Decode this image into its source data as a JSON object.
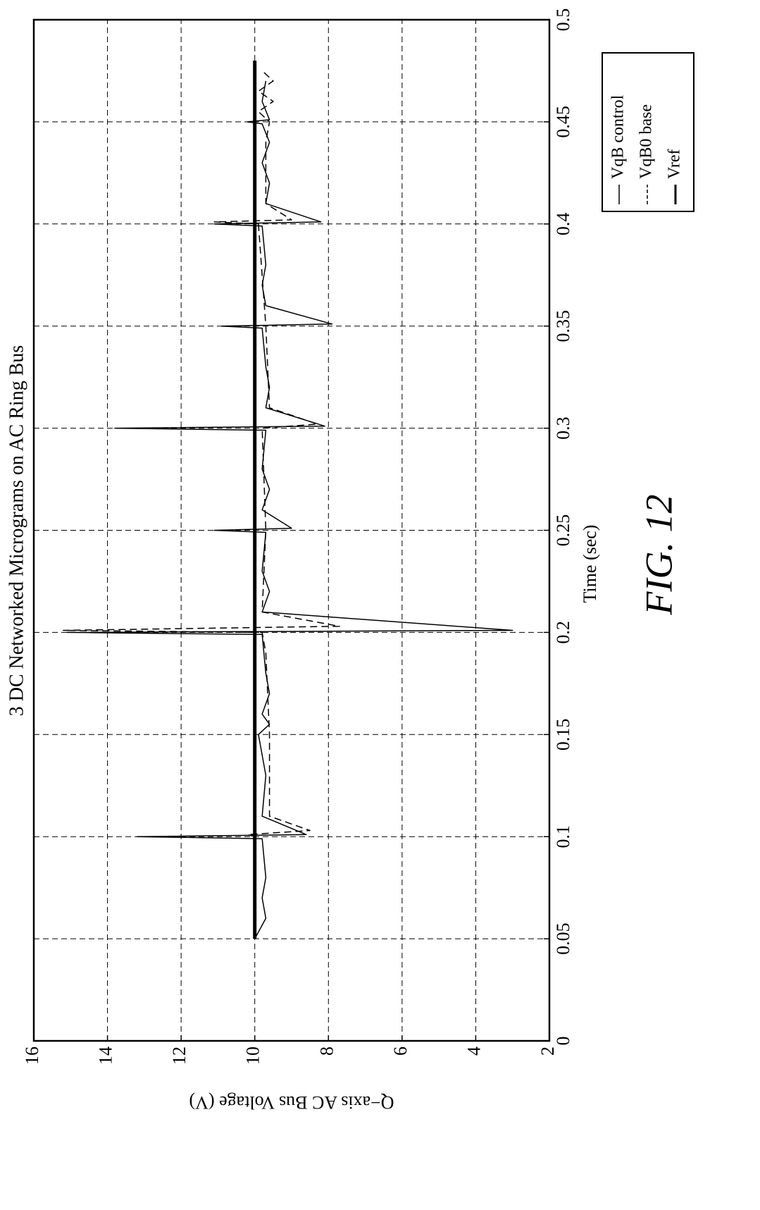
{
  "chart_data": {
    "type": "line",
    "title": "3 DC Networked Micrograms on AC Ring Bus",
    "xlabel": "Time (sec)",
    "ylabel": "Q−axis AC Bus Voltage (V)",
    "figure_label": "FIG. 12",
    "xlim": [
      0,
      0.5
    ],
    "xticks": [
      0,
      0.05,
      0.1,
      0.15,
      0.2,
      0.25,
      0.3,
      0.35,
      0.4,
      0.45,
      0.5
    ],
    "ylim": [
      2,
      16
    ],
    "yticks": [
      2,
      4,
      6,
      8,
      10,
      12,
      14,
      16
    ],
    "grid": true,
    "legend": "outside-right",
    "series": [
      {
        "name": "VqB control",
        "color": "#000000",
        "style": "solid",
        "width": 1.5,
        "x": [
          0.05,
          0.06,
          0.07,
          0.08,
          0.099,
          0.1,
          0.101,
          0.11,
          0.13,
          0.15,
          0.155,
          0.16,
          0.17,
          0.18,
          0.199,
          0.2,
          0.201,
          0.21,
          0.22,
          0.23,
          0.249,
          0.25,
          0.251,
          0.26,
          0.27,
          0.28,
          0.299,
          0.3,
          0.301,
          0.31,
          0.32,
          0.33,
          0.349,
          0.35,
          0.351,
          0.36,
          0.37,
          0.38,
          0.399,
          0.4,
          0.401,
          0.41,
          0.42,
          0.43,
          0.44,
          0.449,
          0.45,
          0.451,
          0.46,
          0.47
        ],
        "values": [
          10,
          9.7,
          9.8,
          9.7,
          9.8,
          13.2,
          8.6,
          9.8,
          9.7,
          9.9,
          9.6,
          9.8,
          9.6,
          9.7,
          9.8,
          15.1,
          3.0,
          9.8,
          9.6,
          9.8,
          9.7,
          11.1,
          9.0,
          9.8,
          9.6,
          9.8,
          9.7,
          13.8,
          8.1,
          9.7,
          9.6,
          9.7,
          9.8,
          10.9,
          7.9,
          9.7,
          9.8,
          9.7,
          9.8,
          11.1,
          8.2,
          9.7,
          9.6,
          9.8,
          9.6,
          9.8,
          10.2,
          9.6,
          9.8,
          9.7
        ]
      },
      {
        "name": "VqB0 base",
        "color": "#000000",
        "style": "dashed",
        "width": 1.5,
        "x": [
          0.05,
          0.1,
          0.101,
          0.103,
          0.11,
          0.15,
          0.19,
          0.2,
          0.201,
          0.203,
          0.21,
          0.25,
          0.3,
          0.302,
          0.31,
          0.35,
          0.4,
          0.401,
          0.402,
          0.41,
          0.44,
          0.45,
          0.455,
          0.46,
          0.465,
          0.47,
          0.475
        ],
        "values": [
          10,
          10,
          10.2,
          8.5,
          9.6,
          9.6,
          9.7,
          9.8,
          15.2,
          7.7,
          9.8,
          9.7,
          9.8,
          8.3,
          9.6,
          9.7,
          9.9,
          11.1,
          9.0,
          9.7,
          9.7,
          9.6,
          9.9,
          9.5,
          9.9,
          9.5,
          9.8
        ]
      },
      {
        "name": "Vref",
        "color": "#000000",
        "style": "solid",
        "width": 5,
        "x": [
          0.05,
          0.48
        ],
        "values": [
          10,
          10
        ]
      }
    ]
  }
}
